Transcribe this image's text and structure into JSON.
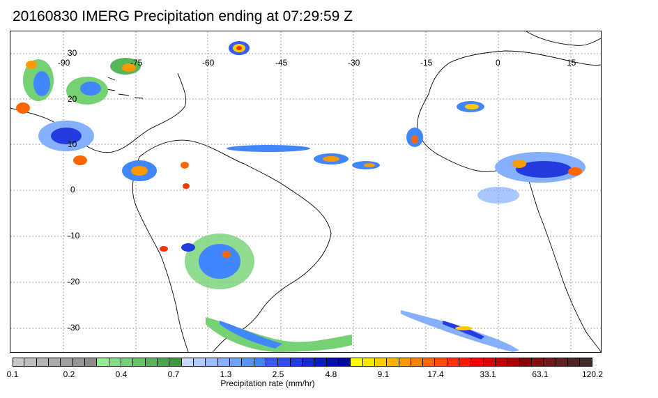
{
  "title": "20160830 IMERG Precipitation ending at 07:29:59 Z",
  "map": {
    "longitude_labels": [
      "-90",
      "-75",
      "-60",
      "-45",
      "-30",
      "-15",
      "0",
      "15"
    ],
    "latitude_labels": [
      "30",
      "20",
      "10",
      "0",
      "-10",
      "-20",
      "-30"
    ],
    "coastline_color": "#000000",
    "gridline_style": "dotted"
  },
  "colorbar": {
    "caption": "Precipitation rate (mm/hr)",
    "tick_labels": [
      "0.1",
      "0.2",
      "0.4",
      "0.7",
      "1.3",
      "2.5",
      "4.8",
      "9.1",
      "17.4",
      "33.1",
      "63.1",
      "120.2"
    ],
    "colors": [
      "#c8c8c8",
      "#bebebe",
      "#b4b4b4",
      "#aaaaaa",
      "#a0a0a0",
      "#969696",
      "#8c8c8c",
      "#90ee90",
      "#82e082",
      "#74d274",
      "#66c466",
      "#58b658",
      "#4aa84a",
      "#3c9a3c",
      "#c6daff",
      "#b0ccff",
      "#9abeff",
      "#84b0ff",
      "#6ea2ff",
      "#5894ff",
      "#4286ff",
      "#3a5cff",
      "#2e4cf0",
      "#223ce0",
      "#162cd0",
      "#0a1cc0",
      "#0010b0",
      "#0008a0",
      "#ffff00",
      "#ffe600",
      "#ffcc00",
      "#ffb300",
      "#ff9900",
      "#ff8000",
      "#ff6600",
      "#ff4d00",
      "#ff3300",
      "#ff1a00",
      "#f00000",
      "#d80000",
      "#c00000",
      "#a80000",
      "#900000",
      "#801010",
      "#701818",
      "#602020",
      "#502424",
      "#402828"
    ]
  }
}
